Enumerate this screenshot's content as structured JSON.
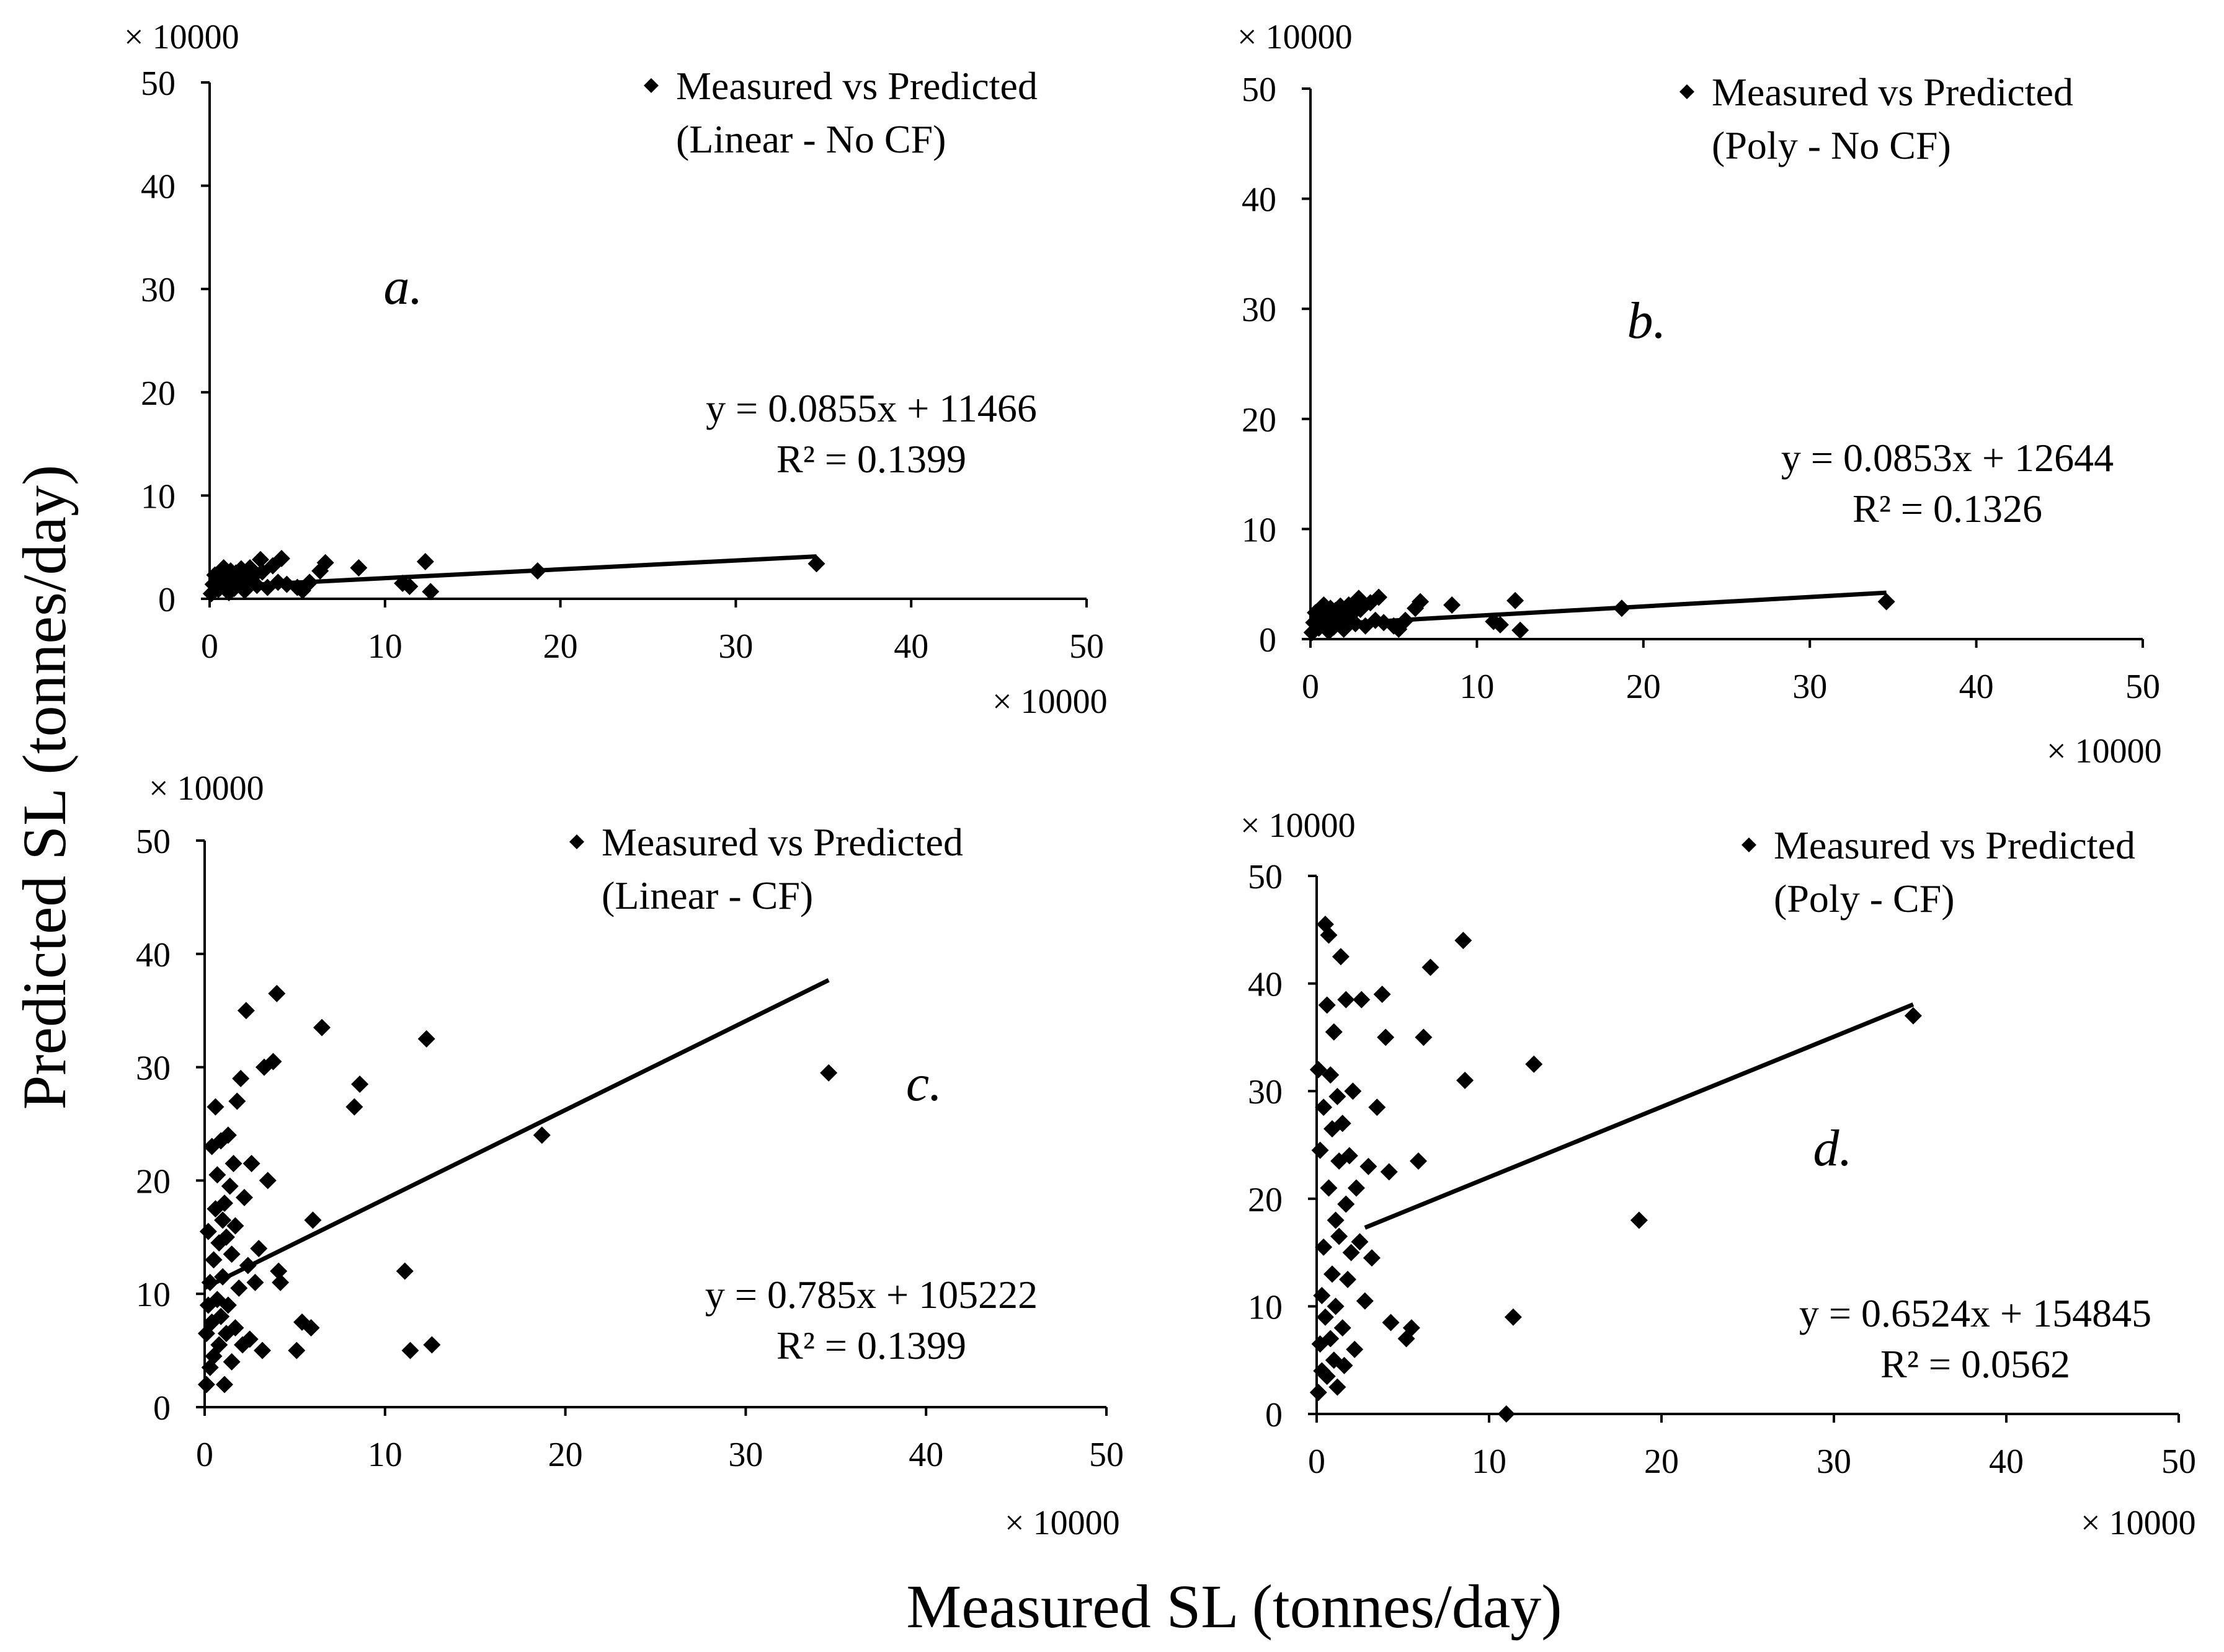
{
  "figure": {
    "ylabel": "Predicted SL (tonnes/day)",
    "xlabel": "Measured SL (tonnes/day)"
  },
  "chart_data": [
    {
      "type": "scatter",
      "panel_label": "a.",
      "legend": [
        "Measured vs Predicted",
        "(Linear - No CF)"
      ],
      "equation": "y = 0.0855x + 11466",
      "r2": "R² = 0.1399",
      "x_multiplier": "× 10000",
      "y_multiplier": "× 10000",
      "xlim": [
        0,
        50
      ],
      "ylim": [
        0,
        50
      ],
      "xticks": [
        "0",
        "10",
        "20",
        "30",
        "40",
        "50"
      ],
      "yticks": [
        "0",
        "10",
        "20",
        "30",
        "40",
        "50"
      ],
      "trendline": {
        "slope": 0.0855,
        "intercept": 1.1466,
        "x_range": [
          0,
          34.6
        ]
      },
      "x": [
        0.1,
        0.2,
        0.3,
        0.5,
        0.6,
        0.7,
        0.8,
        0.9,
        1.0,
        1.1,
        1.2,
        1.3,
        1.4,
        1.5,
        1.7,
        1.8,
        2.0,
        2.1,
        2.3,
        2.5,
        2.7,
        2.9,
        3.0,
        3.3,
        3.6,
        3.9,
        4.1,
        4.4,
        5.0,
        5.3,
        5.7,
        6.3,
        6.6,
        8.5,
        11.0,
        11.4,
        12.3,
        12.6,
        18.7,
        34.6
      ],
      "y": [
        0.5,
        1.4,
        2.3,
        0.9,
        2.6,
        1.7,
        3.0,
        1.2,
        2.1,
        0.6,
        2.7,
        1.8,
        1.0,
        2.5,
        1.4,
        2.9,
        0.8,
        1.9,
        3.0,
        2.2,
        1.3,
        3.8,
        2.6,
        1.1,
        3.2,
        1.6,
        3.9,
        1.4,
        1.1,
        0.8,
        1.6,
        2.7,
        3.5,
        3.0,
        1.5,
        1.2,
        3.6,
        0.7,
        2.7,
        3.4
      ]
    },
    {
      "type": "scatter",
      "panel_label": "b.",
      "legend": [
        "Measured vs Predicted",
        "(Poly - No CF)"
      ],
      "equation": "y = 0.0853x + 12644",
      "r2": "R² = 0.1326",
      "x_multiplier": "× 10000",
      "y_multiplier": "× 10000",
      "xlim": [
        0,
        50
      ],
      "ylim": [
        0,
        50
      ],
      "xticks": [
        "0",
        "10",
        "20",
        "30",
        "40",
        "50"
      ],
      "yticks": [
        "0",
        "10",
        "20",
        "30",
        "40",
        "50"
      ],
      "trendline": {
        "slope": 0.0853,
        "intercept": 1.2644,
        "x_range": [
          0,
          34.6
        ]
      },
      "x": [
        0.1,
        0.2,
        0.3,
        0.5,
        0.6,
        0.7,
        0.8,
        0.9,
        1.0,
        1.1,
        1.2,
        1.3,
        1.4,
        1.5,
        1.7,
        1.8,
        2.0,
        2.1,
        2.3,
        2.5,
        2.7,
        2.9,
        3.0,
        3.3,
        3.6,
        3.9,
        4.1,
        4.4,
        5.0,
        5.3,
        5.7,
        6.3,
        6.6,
        8.5,
        11.0,
        11.4,
        12.3,
        12.6,
        18.7,
        34.6
      ],
      "y": [
        0.6,
        1.5,
        2.4,
        1.0,
        2.8,
        1.8,
        3.1,
        1.3,
        2.2,
        0.7,
        2.8,
        1.9,
        1.1,
        2.6,
        1.5,
        3.0,
        0.9,
        2.0,
        3.1,
        2.3,
        1.4,
        3.7,
        2.7,
        1.2,
        3.3,
        1.7,
        3.8,
        1.5,
        1.2,
        0.9,
        1.7,
        2.8,
        3.4,
        3.1,
        1.6,
        1.3,
        3.5,
        0.8,
        2.8,
        3.4
      ]
    },
    {
      "type": "scatter",
      "panel_label": "c.",
      "legend": [
        "Measured vs Predicted",
        "(Linear - CF)"
      ],
      "equation": "y = 0.785x + 105222",
      "r2": "R² = 0.1399",
      "x_multiplier": "× 10000",
      "y_multiplier": "× 10000",
      "xlim": [
        0,
        50
      ],
      "ylim": [
        0,
        50
      ],
      "xticks": [
        "0",
        "10",
        "20",
        "30",
        "40",
        "50"
      ],
      "yticks": [
        "0",
        "10",
        "20",
        "30",
        "40",
        "50"
      ],
      "trendline": {
        "slope": 0.785,
        "intercept": 10.5222,
        "x_range": [
          0,
          34.6
        ]
      },
      "x": [
        0.1,
        0.1,
        0.2,
        0.2,
        0.3,
        0.3,
        0.4,
        0.4,
        0.5,
        0.5,
        0.6,
        0.6,
        0.7,
        0.7,
        0.8,
        0.8,
        0.9,
        0.9,
        1.0,
        1.0,
        1.1,
        1.1,
        1.2,
        1.2,
        1.3,
        1.3,
        1.4,
        1.5,
        1.5,
        1.6,
        1.7,
        1.7,
        1.8,
        1.9,
        2.0,
        2.1,
        2.2,
        2.3,
        2.4,
        2.5,
        2.6,
        2.8,
        3.0,
        3.2,
        3.3,
        3.5,
        3.8,
        4.0,
        4.1,
        4.2,
        5.1,
        5.4,
        5.9,
        6.0,
        6.5,
        8.3,
        8.6,
        11.1,
        11.4,
        12.3,
        12.6,
        18.7,
        34.6
      ],
      "y": [
        2.0,
        6.5,
        9.0,
        15.5,
        3.5,
        11.0,
        23.0,
        7.5,
        13.0,
        4.5,
        17.5,
        26.5,
        9.5,
        20.5,
        5.5,
        14.5,
        23.5,
        8.0,
        16.5,
        11.5,
        2.0,
        18.0,
        6.5,
        15.0,
        24.0,
        9.0,
        19.5,
        4.0,
        13.5,
        21.5,
        7.0,
        16.0,
        27.0,
        10.5,
        29.0,
        5.5,
        18.5,
        35.0,
        12.5,
        6.0,
        21.5,
        11.0,
        14.0,
        5.0,
        30.0,
        20.0,
        30.5,
        36.5,
        12.0,
        11.0,
        5.0,
        7.5,
        7.0,
        16.5,
        33.5,
        26.5,
        28.5,
        12.0,
        5.0,
        32.5,
        5.5,
        24.0,
        29.5
      ]
    },
    {
      "type": "scatter",
      "panel_label": "d.",
      "legend": [
        "Measured vs Predicted",
        "(Poly - CF)"
      ],
      "equation": "y = 0.6524x + 154845",
      "r2": "R² = 0.0562",
      "x_multiplier": "× 10000",
      "y_multiplier": "× 10000",
      "xlim": [
        0,
        50
      ],
      "ylim": [
        0,
        50
      ],
      "xticks": [
        "0",
        "10",
        "20",
        "30",
        "40",
        "50"
      ],
      "yticks": [
        "0",
        "10",
        "20",
        "30",
        "40",
        "50"
      ],
      "trendline": {
        "slope": 0.6524,
        "intercept": 15.4845,
        "x_range": [
          2.8,
          34.6
        ]
      },
      "x": [
        0.1,
        0.1,
        0.2,
        0.2,
        0.3,
        0.3,
        0.4,
        0.4,
        0.5,
        0.5,
        0.6,
        0.6,
        0.7,
        0.7,
        0.8,
        0.8,
        0.9,
        0.9,
        1.0,
        1.0,
        1.1,
        1.1,
        1.2,
        1.2,
        1.3,
        1.3,
        1.4,
        1.5,
        1.5,
        1.6,
        1.7,
        1.7,
        1.8,
        1.9,
        2.0,
        2.1,
        2.2,
        2.3,
        2.5,
        2.6,
        2.8,
        3.0,
        3.2,
        3.5,
        3.8,
        4.0,
        4.2,
        4.3,
        5.2,
        5.5,
        5.9,
        6.2,
        6.6,
        8.5,
        8.6,
        11.0,
        11.4,
        12.6,
        18.7,
        34.6
      ],
      "y": [
        2.0,
        32.0,
        6.5,
        24.5,
        11.0,
        4.0,
        28.5,
        15.5,
        45.5,
        9.0,
        38.0,
        3.5,
        44.5,
        21.0,
        7.0,
        31.5,
        13.0,
        26.5,
        5.0,
        35.5,
        18.0,
        10.0,
        29.5,
        2.5,
        23.5,
        16.5,
        42.5,
        8.0,
        27.0,
        4.5,
        19.5,
        38.5,
        12.5,
        24.0,
        15.0,
        30.0,
        6.0,
        21.0,
        16.0,
        38.5,
        10.5,
        23.0,
        14.5,
        28.5,
        39.0,
        35.0,
        22.5,
        8.5,
        7.0,
        8.0,
        23.5,
        35.0,
        41.5,
        44.0,
        31.0,
        0.0,
        9.0,
        32.5,
        18.0,
        37.0
      ]
    }
  ]
}
